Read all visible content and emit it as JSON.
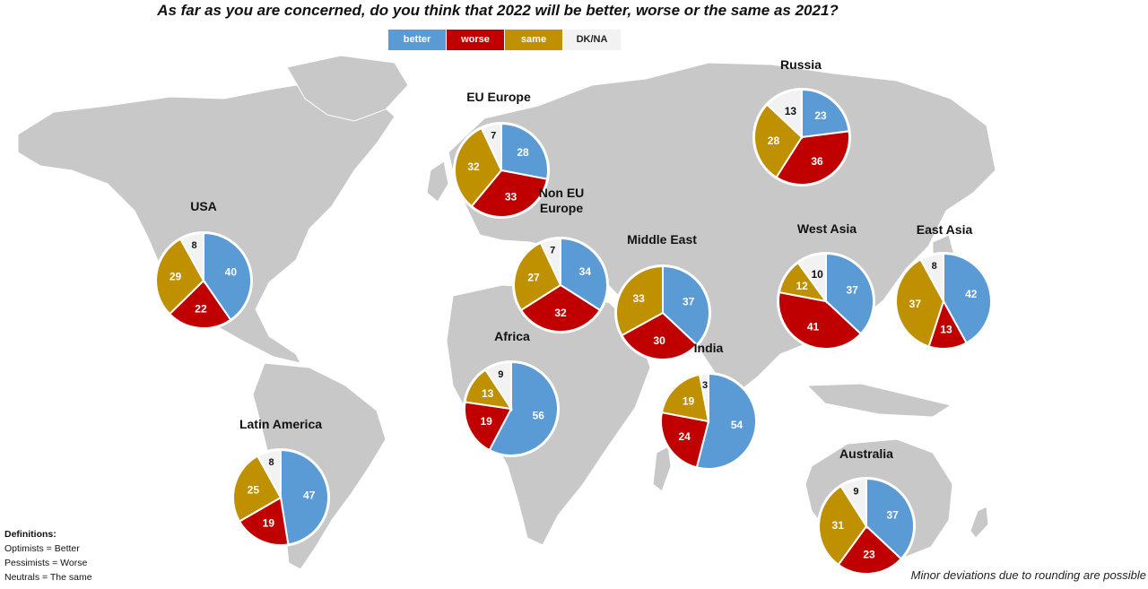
{
  "title": "As far as you are concerned, do you think that 2022 will be better, worse or the same as 2021?",
  "legend": [
    {
      "label": "better",
      "color": "#5b9bd5"
    },
    {
      "label": "worse",
      "color": "#c00000"
    },
    {
      "label": "same",
      "color": "#bf9000"
    },
    {
      "label": "DK/NA",
      "color": "#f2f2f2"
    }
  ],
  "definitions": {
    "heading": "Definitions:",
    "lines": [
      "Optimists = Better",
      "Pessimists = Worse",
      "Neutrals = The same"
    ]
  },
  "footnote": "Minor deviations due to rounding are possible",
  "chart_data": {
    "type": "pie",
    "categories": [
      "better",
      "worse",
      "same",
      "DK/NA"
    ],
    "colors": [
      "#5b9bd5",
      "#c00000",
      "#bf9000",
      "#f2f2f2"
    ],
    "background": "world map (gray)",
    "regions": [
      {
        "name": "USA",
        "values": [
          40,
          22,
          29,
          8
        ]
      },
      {
        "name": "Latin America",
        "values": [
          47,
          19,
          25,
          8
        ]
      },
      {
        "name": "EU Europe",
        "values": [
          28,
          33,
          32,
          7
        ]
      },
      {
        "name": "Non EU Europe",
        "values": [
          34,
          32,
          27,
          7
        ]
      },
      {
        "name": "Africa",
        "values": [
          56,
          19,
          13,
          9
        ]
      },
      {
        "name": "Middle East",
        "values": [
          37,
          30,
          33,
          0
        ]
      },
      {
        "name": "Russia",
        "values": [
          23,
          36,
          28,
          13
        ]
      },
      {
        "name": "West Asia",
        "values": [
          37,
          41,
          12,
          10
        ]
      },
      {
        "name": "East Asia",
        "values": [
          42,
          13,
          37,
          8
        ]
      },
      {
        "name": "India",
        "values": [
          54,
          24,
          19,
          3
        ]
      },
      {
        "name": "Australia",
        "values": [
          37,
          23,
          31,
          9
        ]
      }
    ]
  }
}
